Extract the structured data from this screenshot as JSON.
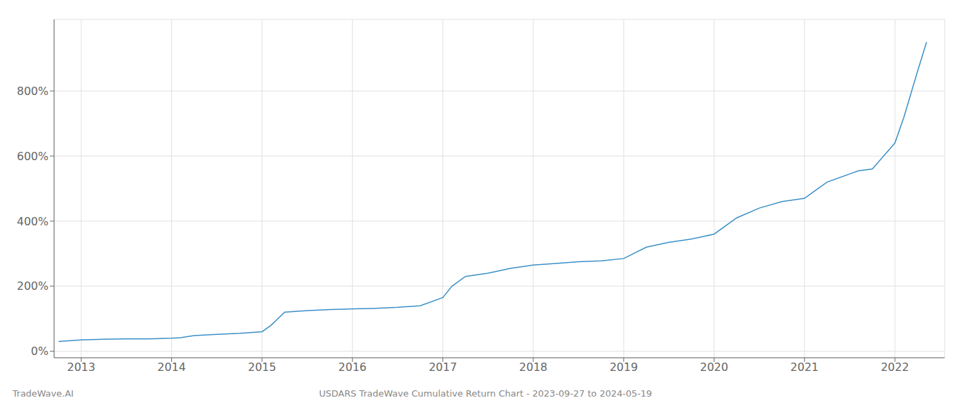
{
  "chart_data": {
    "type": "line",
    "title": "USDARS TradeWave Cumulative Return Chart - 2023-09-27 to 2024-05-19",
    "annotations": [
      "TradeWave.AI"
    ],
    "color": "#3a8fc7",
    "grid": true,
    "xlim": [
      2012.7,
      2022.55
    ],
    "ylim": [
      -20,
      1020
    ],
    "xticks": [
      2013,
      2014,
      2015,
      2016,
      2017,
      2018,
      2019,
      2020,
      2021,
      2022
    ],
    "yticks": [
      {
        "value": 0,
        "label": "0%"
      },
      {
        "value": 200,
        "label": "200%"
      },
      {
        "value": 400,
        "label": "400%"
      },
      {
        "value": 600,
        "label": "600%"
      },
      {
        "value": 800,
        "label": "800%"
      }
    ],
    "x": [
      2012.75,
      2013.0,
      2013.25,
      2013.5,
      2013.75,
      2014.0,
      2014.1,
      2014.25,
      2014.5,
      2014.75,
      2015.0,
      2015.1,
      2015.25,
      2015.5,
      2015.75,
      2016.0,
      2016.25,
      2016.5,
      2016.75,
      2017.0,
      2017.1,
      2017.25,
      2017.5,
      2017.75,
      2018.0,
      2018.25,
      2018.5,
      2018.75,
      2019.0,
      2019.25,
      2019.5,
      2019.75,
      2020.0,
      2020.25,
      2020.5,
      2020.75,
      2021.0,
      2021.1,
      2021.25,
      2021.5,
      2021.6,
      2021.75,
      2022.0,
      2022.1,
      2022.25,
      2022.35
    ],
    "values": [
      30,
      35,
      37,
      38,
      38,
      40,
      42,
      48,
      52,
      55,
      60,
      80,
      120,
      125,
      128,
      130,
      132,
      135,
      140,
      165,
      200,
      230,
      240,
      255,
      265,
      270,
      275,
      278,
      285,
      320,
      335,
      345,
      360,
      410,
      440,
      460,
      470,
      490,
      520,
      545,
      555,
      560,
      640,
      720,
      860,
      950
    ]
  }
}
